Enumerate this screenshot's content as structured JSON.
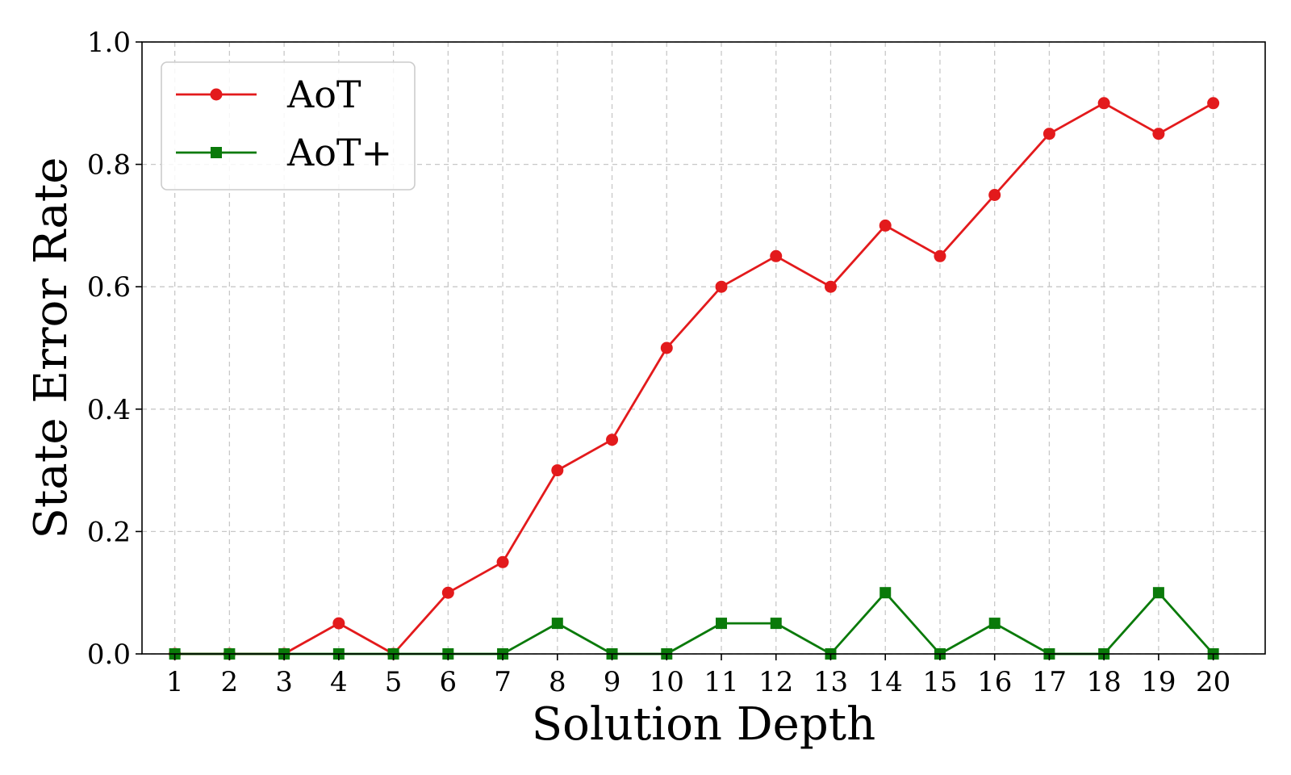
{
  "chart_data": {
    "type": "line",
    "title": "",
    "xlabel": "Solution Depth",
    "ylabel": "State Error Rate",
    "x": [
      1,
      2,
      3,
      4,
      5,
      6,
      7,
      8,
      9,
      10,
      11,
      12,
      13,
      14,
      15,
      16,
      17,
      18,
      19,
      20
    ],
    "x_tick_labels": [
      "1",
      "2",
      "3",
      "4",
      "5",
      "6",
      "7",
      "8",
      "9",
      "10",
      "11",
      "12",
      "13",
      "14",
      "15",
      "16",
      "17",
      "18",
      "19",
      "20"
    ],
    "y_tick_labels": [
      "0.0",
      "0.2",
      "0.4",
      "0.6",
      "0.8",
      "1.0"
    ],
    "ylim": [
      0,
      1.0
    ],
    "xlim": [
      0.4,
      20.95
    ],
    "grid": true,
    "legend_position": "top-left",
    "series": [
      {
        "name": "AoT",
        "color": "#e31a1c",
        "marker": "circle",
        "values": [
          0.0,
          0.0,
          0.0,
          0.05,
          0.0,
          0.1,
          0.15,
          0.3,
          0.35,
          0.5,
          0.6,
          0.65,
          0.6,
          0.7,
          0.65,
          0.75,
          0.85,
          0.9,
          0.85,
          0.9
        ]
      },
      {
        "name": "AoT+",
        "color": "#0a7a0a",
        "marker": "square",
        "values": [
          0.0,
          0.0,
          0.0,
          0.0,
          0.0,
          0.0,
          0.0,
          0.05,
          0.0,
          0.0,
          0.05,
          0.05,
          0.0,
          0.1,
          0.0,
          0.05,
          0.0,
          0.0,
          0.1,
          0.0
        ]
      }
    ]
  }
}
